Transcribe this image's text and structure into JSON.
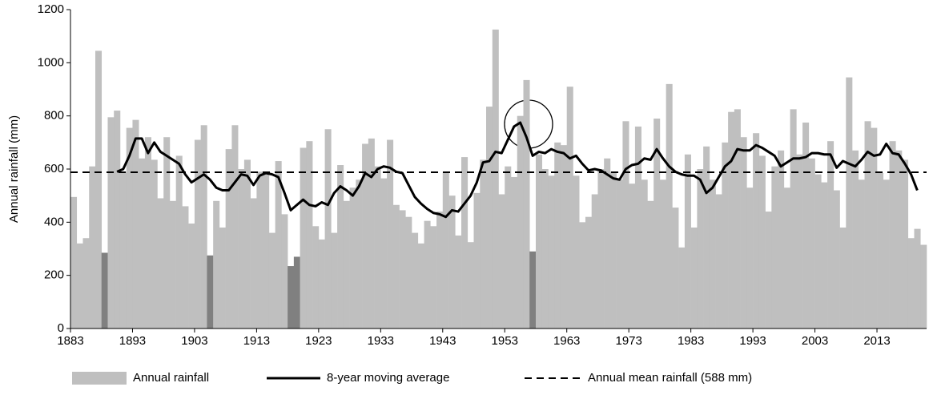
{
  "chart_data": {
    "type": "bar-line",
    "ylabel": "Annual rainfall (mm)",
    "xlim": [
      1883,
      2021
    ],
    "xticks": [
      1883,
      1893,
      1903,
      1913,
      1923,
      1933,
      1943,
      1953,
      1963,
      1973,
      1983,
      1993,
      2003,
      2013
    ],
    "ylim": [
      0,
      1200
    ],
    "yticks": [
      0,
      200,
      400,
      600,
      800,
      1000,
      1200
    ],
    "series": [
      {
        "name": "Annual rainfall",
        "type": "bar",
        "color": "#bfbfbf",
        "x": [
          1883,
          1884,
          1885,
          1886,
          1887,
          1888,
          1889,
          1890,
          1891,
          1892,
          1893,
          1894,
          1895,
          1896,
          1897,
          1898,
          1899,
          1900,
          1901,
          1902,
          1903,
          1904,
          1905,
          1906,
          1907,
          1908,
          1909,
          1910,
          1911,
          1912,
          1913,
          1914,
          1915,
          1916,
          1917,
          1918,
          1919,
          1920,
          1921,
          1922,
          1923,
          1924,
          1925,
          1926,
          1927,
          1928,
          1929,
          1930,
          1931,
          1932,
          1933,
          1934,
          1935,
          1936,
          1937,
          1938,
          1939,
          1940,
          1941,
          1942,
          1943,
          1944,
          1945,
          1946,
          1947,
          1948,
          1949,
          1950,
          1951,
          1952,
          1953,
          1954,
          1955,
          1956,
          1957,
          1958,
          1959,
          1960,
          1961,
          1962,
          1963,
          1964,
          1965,
          1966,
          1967,
          1968,
          1969,
          1970,
          1971,
          1972,
          1973,
          1974,
          1975,
          1976,
          1977,
          1978,
          1979,
          1980,
          1981,
          1982,
          1983,
          1984,
          1985,
          1986,
          1987,
          1988,
          1989,
          1990,
          1991,
          1992,
          1993,
          1994,
          1995,
          1996,
          1997,
          1998,
          1999,
          2000,
          2001,
          2002,
          2003,
          2004,
          2005,
          2006,
          2007,
          2008,
          2009,
          2010,
          2011,
          2012,
          2013,
          2014,
          2015,
          2016,
          2017,
          2018,
          2019,
          2020
        ],
        "values": [
          495,
          320,
          340,
          610,
          1045,
          285,
          795,
          820,
          590,
          755,
          785,
          640,
          720,
          635,
          490,
          720,
          480,
          650,
          460,
          395,
          710,
          765,
          275,
          480,
          380,
          675,
          765,
          600,
          635,
          490,
          590,
          590,
          360,
          630,
          430,
          235,
          270,
          680,
          705,
          385,
          335,
          750,
          360,
          615,
          480,
          530,
          560,
          695,
          715,
          610,
          565,
          710,
          465,
          445,
          420,
          360,
          320,
          405,
          385,
          440,
          590,
          500,
          350,
          645,
          325,
          510,
          635,
          835,
          1125,
          505,
          610,
          570,
          800,
          935,
          290,
          655,
          600,
          575,
          700,
          690,
          910,
          575,
          400,
          420,
          505,
          600,
          640,
          590,
          560,
          780,
          545,
          760,
          560,
          480,
          790,
          560,
          920,
          455,
          305,
          655,
          380,
          600,
          685,
          560,
          505,
          700,
          815,
          825,
          720,
          530,
          735,
          650,
          440,
          610,
          670,
          530,
          825,
          655,
          775,
          640,
          580,
          550,
          705,
          520,
          380,
          945,
          670,
          560,
          780,
          755,
          585,
          560,
          705,
          670,
          635,
          340,
          375,
          315
        ],
        "colors": [
          "#bfbfbf",
          "#bfbfbf",
          "#bfbfbf",
          "#bfbfbf",
          "#bfbfbf",
          "#808080",
          "#bfbfbf",
          "#bfbfbf",
          "#bfbfbf",
          "#bfbfbf",
          "#bfbfbf",
          "#bfbfbf",
          "#bfbfbf",
          "#bfbfbf",
          "#bfbfbf",
          "#bfbfbf",
          "#bfbfbf",
          "#bfbfbf",
          "#bfbfbf",
          "#bfbfbf",
          "#bfbfbf",
          "#bfbfbf",
          "#808080",
          "#bfbfbf",
          "#bfbfbf",
          "#bfbfbf",
          "#bfbfbf",
          "#bfbfbf",
          "#bfbfbf",
          "#bfbfbf",
          "#bfbfbf",
          "#bfbfbf",
          "#bfbfbf",
          "#bfbfbf",
          "#bfbfbf",
          "#808080",
          "#808080",
          "#bfbfbf",
          "#bfbfbf",
          "#bfbfbf",
          "#bfbfbf",
          "#bfbfbf",
          "#bfbfbf",
          "#bfbfbf",
          "#bfbfbf",
          "#bfbfbf",
          "#bfbfbf",
          "#bfbfbf",
          "#bfbfbf",
          "#bfbfbf",
          "#bfbfbf",
          "#bfbfbf",
          "#bfbfbf",
          "#bfbfbf",
          "#bfbfbf",
          "#bfbfbf",
          "#bfbfbf",
          "#bfbfbf",
          "#bfbfbf",
          "#bfbfbf",
          "#bfbfbf",
          "#bfbfbf",
          "#bfbfbf",
          "#bfbfbf",
          "#bfbfbf",
          "#bfbfbf",
          "#bfbfbf",
          "#bfbfbf",
          "#bfbfbf",
          "#bfbfbf",
          "#bfbfbf",
          "#bfbfbf",
          "#bfbfbf",
          "#bfbfbf",
          "#808080",
          "#bfbfbf",
          "#bfbfbf",
          "#bfbfbf",
          "#bfbfbf",
          "#bfbfbf",
          "#bfbfbf",
          "#bfbfbf",
          "#bfbfbf",
          "#bfbfbf",
          "#bfbfbf",
          "#bfbfbf",
          "#bfbfbf",
          "#bfbfbf",
          "#bfbfbf",
          "#bfbfbf",
          "#bfbfbf",
          "#bfbfbf",
          "#bfbfbf",
          "#bfbfbf",
          "#bfbfbf",
          "#bfbfbf",
          "#bfbfbf",
          "#bfbfbf",
          "#bfbfbf",
          "#bfbfbf",
          "#bfbfbf",
          "#bfbfbf",
          "#bfbfbf",
          "#bfbfbf",
          "#bfbfbf",
          "#bfbfbf",
          "#bfbfbf",
          "#bfbfbf",
          "#bfbfbf",
          "#bfbfbf",
          "#bfbfbf",
          "#bfbfbf",
          "#bfbfbf",
          "#bfbfbf",
          "#bfbfbf",
          "#bfbfbf",
          "#bfbfbf",
          "#bfbfbf",
          "#bfbfbf",
          "#bfbfbf",
          "#bfbfbf",
          "#bfbfbf",
          "#bfbfbf",
          "#bfbfbf",
          "#bfbfbf",
          "#bfbfbf",
          "#bfbfbf",
          "#bfbfbf",
          "#bfbfbf",
          "#bfbfbf",
          "#bfbfbf",
          "#bfbfbf",
          "#bfbfbf",
          "#bfbfbf",
          "#bfbfbf",
          "#bfbfbf",
          "#bfbfbf",
          "#bfbfbf"
        ]
      },
      {
        "name": "8-year moving average",
        "type": "line",
        "color": "#000000",
        "x": [
          1890,
          1891,
          1892,
          1893,
          1894,
          1895,
          1896,
          1897,
          1898,
          1899,
          1900,
          1901,
          1902,
          1903,
          1904,
          1905,
          1906,
          1907,
          1908,
          1909,
          1910,
          1911,
          1912,
          1913,
          1914,
          1915,
          1916,
          1917,
          1918,
          1919,
          1920,
          1921,
          1922,
          1923,
          1924,
          1925,
          1926,
          1927,
          1928,
          1929,
          1930,
          1931,
          1932,
          1933,
          1934,
          1935,
          1936,
          1937,
          1938,
          1939,
          1940,
          1941,
          1942,
          1943,
          1944,
          1945,
          1946,
          1947,
          1948,
          1949,
          1950,
          1951,
          1952,
          1953,
          1954,
          1955,
          1956,
          1957,
          1958,
          1959,
          1960,
          1961,
          1962,
          1963,
          1964,
          1965,
          1966,
          1967,
          1968,
          1969,
          1970,
          1971,
          1972,
          1973,
          1974,
          1975,
          1976,
          1977,
          1978,
          1979,
          1980,
          1981,
          1982,
          1983,
          1984,
          1985,
          1986,
          1987,
          1988,
          1989,
          1990,
          1991,
          1992,
          1993,
          1994,
          1995,
          1996,
          1997,
          1998,
          1999,
          2000,
          2001,
          2002,
          2003,
          2004,
          2005,
          2006,
          2007,
          2008,
          2009,
          2010,
          2011,
          2012,
          2013,
          2014,
          2015,
          2016,
          2017,
          2018,
          2019
        ],
        "values": [
          590,
          600,
          650,
          715,
          715,
          660,
          700,
          665,
          650,
          635,
          620,
          580,
          550,
          565,
          580,
          560,
          530,
          520,
          520,
          550,
          580,
          575,
          540,
          575,
          585,
          580,
          570,
          510,
          445,
          465,
          485,
          465,
          460,
          475,
          465,
          510,
          535,
          520,
          500,
          535,
          585,
          570,
          600,
          610,
          605,
          590,
          585,
          540,
          495,
          470,
          450,
          435,
          430,
          420,
          445,
          440,
          470,
          500,
          550,
          625,
          630,
          665,
          660,
          710,
          760,
          775,
          720,
          650,
          665,
          660,
          675,
          665,
          660,
          640,
          650,
          620,
          595,
          600,
          595,
          580,
          565,
          560,
          600,
          615,
          620,
          640,
          635,
          675,
          640,
          610,
          590,
          580,
          575,
          575,
          560,
          510,
          530,
          570,
          610,
          630,
          675,
          670,
          670,
          690,
          680,
          665,
          650,
          610,
          625,
          640,
          640,
          645,
          660,
          660,
          655,
          655,
          605,
          630,
          620,
          610,
          635,
          665,
          650,
          655,
          695,
          660,
          655,
          620,
          580,
          520
        ]
      }
    ],
    "mean": {
      "name": "Annual mean rainfall (588 mm)",
      "value": 588,
      "color": "#000000"
    }
  }
}
